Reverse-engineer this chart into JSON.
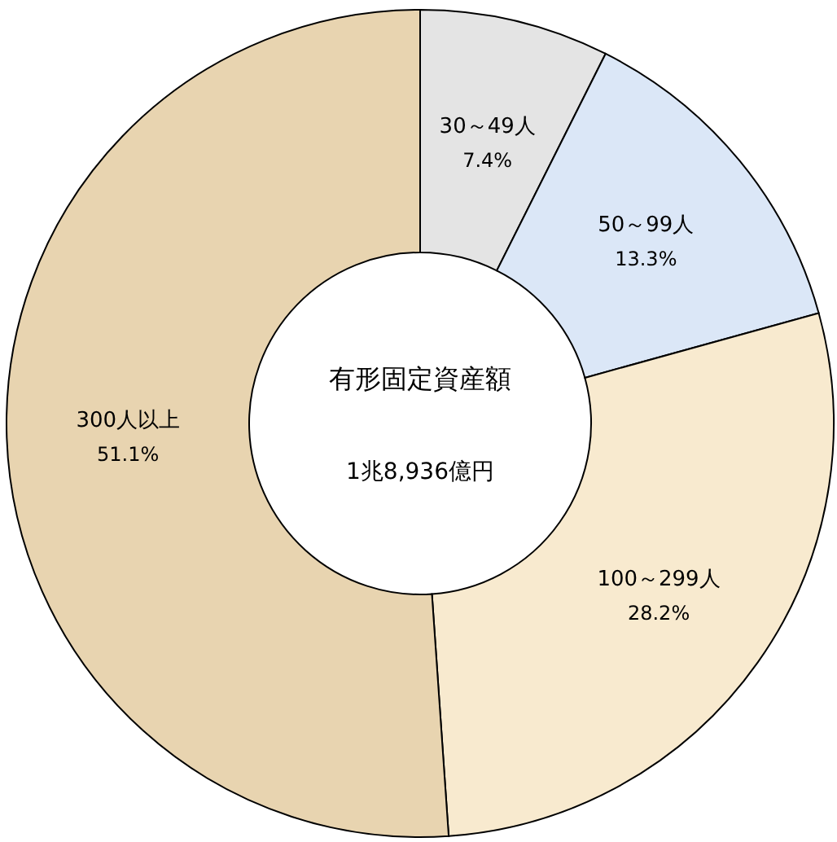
{
  "chart_data": {
    "type": "donut",
    "categories": [
      "30～49人",
      "50～99人",
      "100～299人",
      "300人以上"
    ],
    "values": [
      7.4,
      13.3,
      28.2,
      51.1
    ],
    "value_labels": [
      "7.4%",
      "13.3%",
      "28.2%",
      "51.1%"
    ],
    "colors": [
      "#e4e4e4",
      "#dbe7f7",
      "#f8eacf",
      "#e8d4b0"
    ],
    "annotations": [
      "有形固定資産額",
      "1兆8,936億円"
    ],
    "legend": false
  }
}
